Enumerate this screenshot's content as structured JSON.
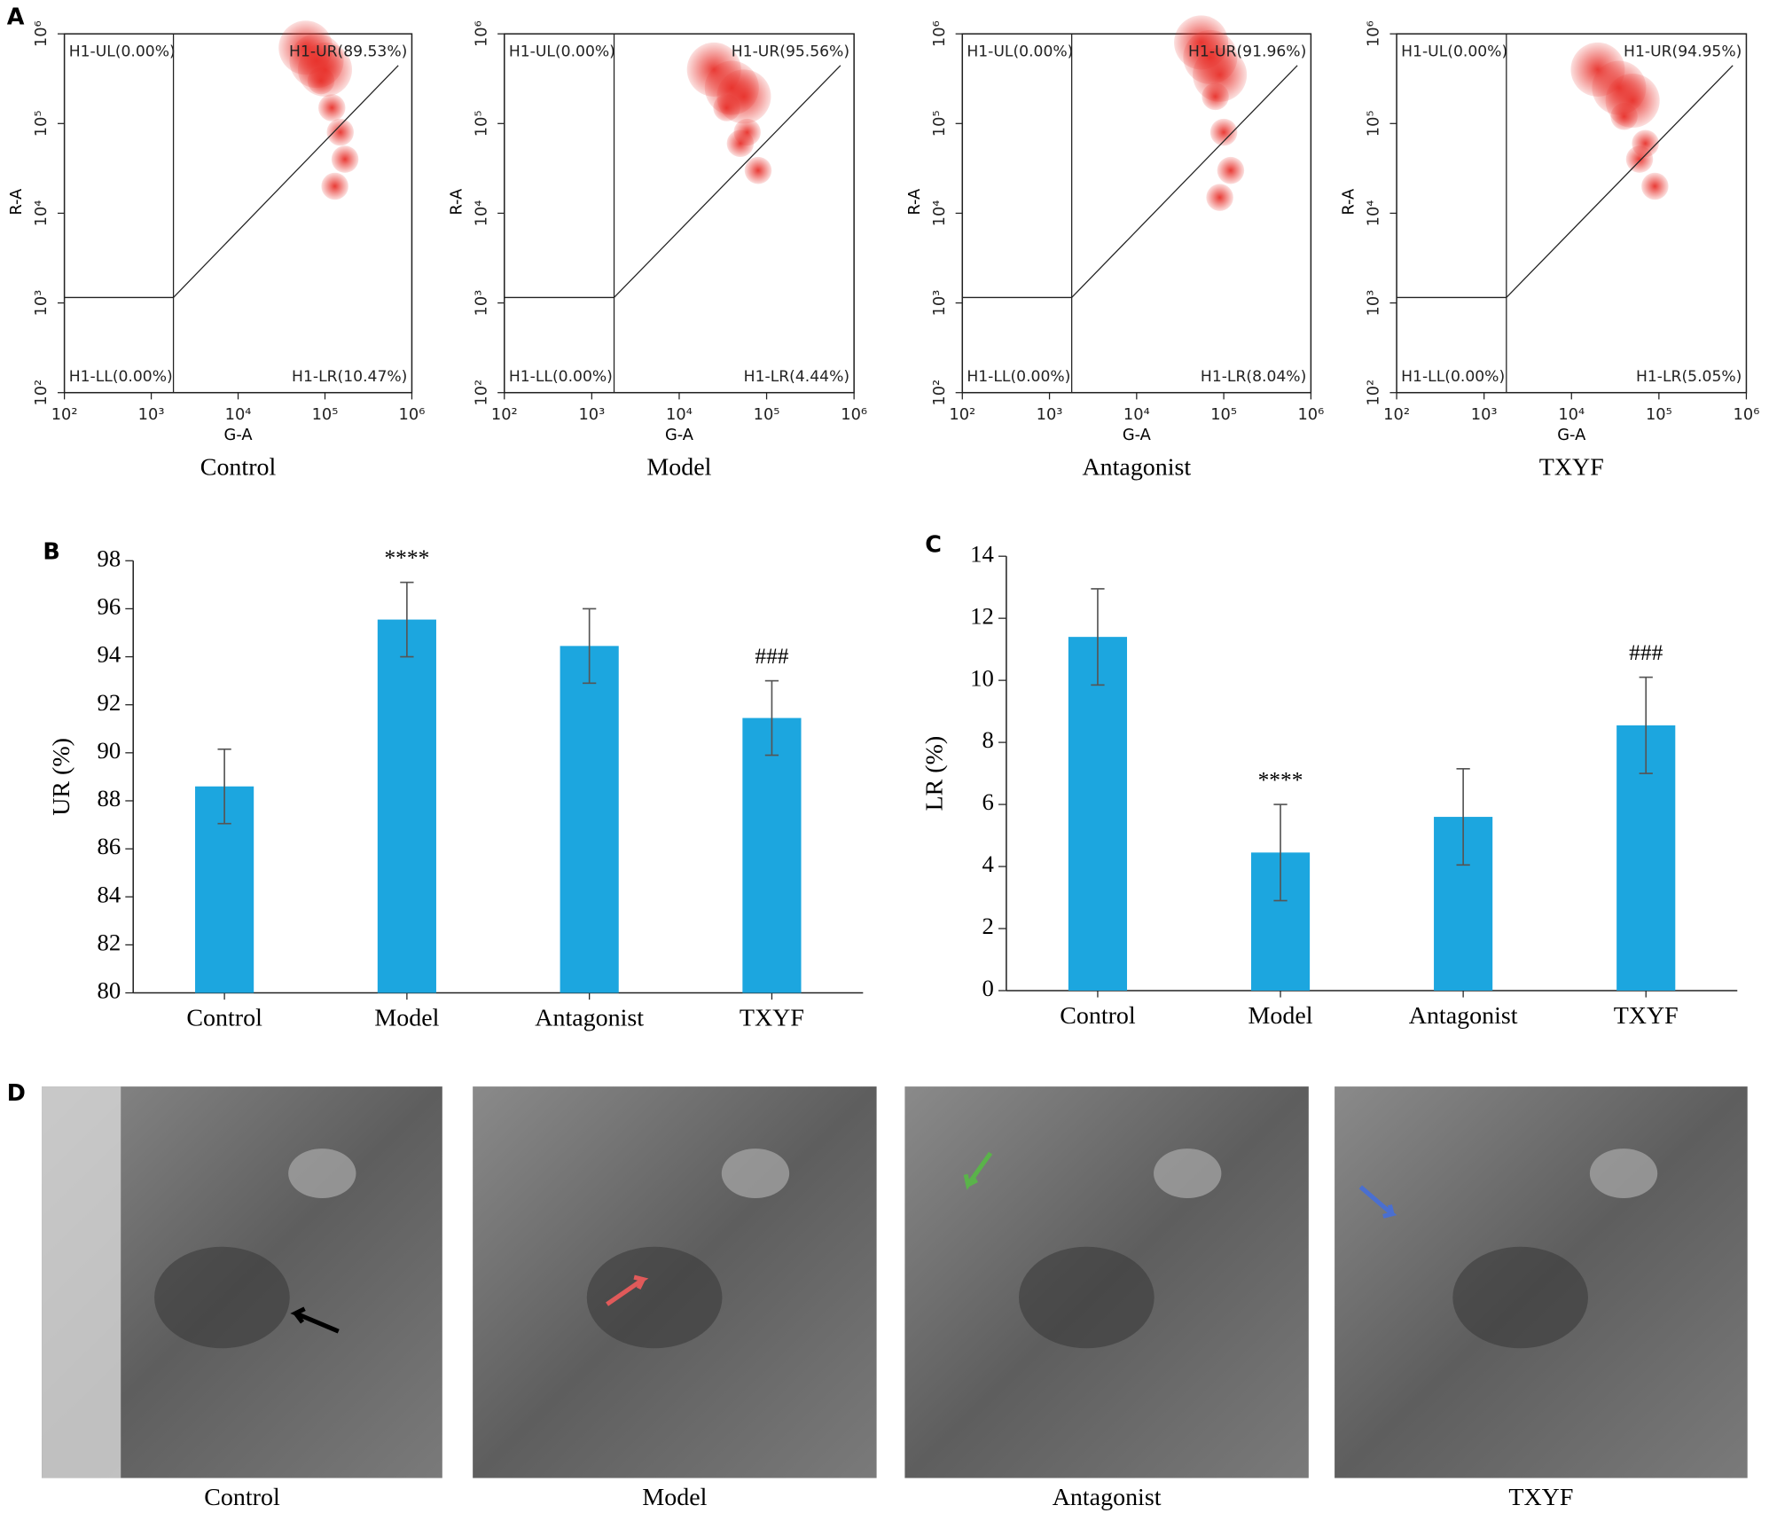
{
  "panel_labels": [
    "A",
    "B",
    "C",
    "D"
  ],
  "chart_data": [
    {
      "type": "scatter",
      "caption": "Control",
      "xlabel": "G-A",
      "ylabel": "R-A",
      "log_x": true,
      "log_y": true,
      "xlim": [
        100,
        1000000
      ],
      "ylim": [
        100,
        1000000
      ],
      "xticks": [
        {
          "value": 100,
          "label": "10²"
        },
        {
          "value": 1000,
          "label": "10³"
        },
        {
          "value": 10000,
          "label": "10⁴"
        },
        {
          "value": 100000,
          "label": "10⁵"
        },
        {
          "value": 1000000,
          "label": "10⁶"
        }
      ],
      "yticks": [
        {
          "value": 100,
          "label": "10²"
        },
        {
          "value": 1000,
          "label": "10³"
        },
        {
          "value": 10000,
          "label": "10⁴"
        },
        {
          "value": 100000,
          "label": "10⁵"
        },
        {
          "value": 1000000,
          "label": "10⁶"
        }
      ],
      "color": "#e8312b",
      "gate": {
        "x": 1800,
        "y": 1150
      },
      "quadrant_labels": {
        "UL": "H1-UL(0.00%)",
        "UR": "H1-UR(89.53%)",
        "LL": "H1-LL(0.00%)",
        "LR": "H1-LR(10.47%)"
      },
      "x": [
        60000,
        80000,
        100000,
        90000,
        120000,
        150000,
        170000,
        130000
      ],
      "y": [
        700000,
        500000,
        400000,
        300000,
        150000,
        80000,
        40000,
        20000
      ]
    },
    {
      "type": "scatter",
      "caption": "Model",
      "xlabel": "G-A",
      "ylabel": "R-A",
      "log_x": true,
      "log_y": true,
      "xlim": [
        100,
        1000000
      ],
      "ylim": [
        100,
        1000000
      ],
      "xticks": [
        {
          "value": 100,
          "label": "10²"
        },
        {
          "value": 1000,
          "label": "10³"
        },
        {
          "value": 10000,
          "label": "10⁴"
        },
        {
          "value": 100000,
          "label": "10⁵"
        },
        {
          "value": 1000000,
          "label": "10⁶"
        }
      ],
      "yticks": [
        {
          "value": 100,
          "label": "10²"
        },
        {
          "value": 1000,
          "label": "10³"
        },
        {
          "value": 10000,
          "label": "10⁴"
        },
        {
          "value": 100000,
          "label": "10⁵"
        },
        {
          "value": 1000000,
          "label": "10⁶"
        }
      ],
      "color": "#e8312b",
      "gate": {
        "x": 1800,
        "y": 1150
      },
      "quadrant_labels": {
        "UL": "H1-UL(0.00%)",
        "UR": "H1-UR(95.56%)",
        "LL": "H1-LL(0.00%)",
        "LR": "H1-LR(4.44%)"
      },
      "x": [
        25000,
        40000,
        55000,
        35000,
        60000,
        80000,
        50000
      ],
      "y": [
        400000,
        250000,
        200000,
        150000,
        80000,
        30000,
        60000
      ]
    },
    {
      "type": "scatter",
      "caption": "Antagonist",
      "xlabel": "G-A",
      "ylabel": "R-A",
      "log_x": true,
      "log_y": true,
      "xlim": [
        100,
        1000000
      ],
      "ylim": [
        100,
        1000000
      ],
      "xticks": [
        {
          "value": 100,
          "label": "10²"
        },
        {
          "value": 1000,
          "label": "10³"
        },
        {
          "value": 10000,
          "label": "10⁴"
        },
        {
          "value": 100000,
          "label": "10⁵"
        },
        {
          "value": 1000000,
          "label": "10⁶"
        }
      ],
      "yticks": [
        {
          "value": 100,
          "label": "10²"
        },
        {
          "value": 1000,
          "label": "10³"
        },
        {
          "value": 10000,
          "label": "10⁴"
        },
        {
          "value": 100000,
          "label": "10⁵"
        },
        {
          "value": 1000000,
          "label": "10⁶"
        }
      ],
      "color": "#e8312b",
      "gate": {
        "x": 1800,
        "y": 1150
      },
      "quadrant_labels": {
        "UL": "H1-UL(0.00%)",
        "UR": "H1-UR(91.96%)",
        "LL": "H1-LL(0.00%)",
        "LR": "H1-LR(8.04%)"
      },
      "x": [
        55000,
        70000,
        90000,
        80000,
        100000,
        120000,
        90000
      ],
      "y": [
        800000,
        550000,
        350000,
        200000,
        80000,
        30000,
        15000
      ]
    },
    {
      "type": "scatter",
      "caption": "TXYF",
      "xlabel": "G-A",
      "ylabel": "R-A",
      "log_x": true,
      "log_y": true,
      "xlim": [
        100,
        1000000
      ],
      "ylim": [
        100,
        1000000
      ],
      "xticks": [
        {
          "value": 100,
          "label": "10²"
        },
        {
          "value": 1000,
          "label": "10³"
        },
        {
          "value": 10000,
          "label": "10⁴"
        },
        {
          "value": 100000,
          "label": "10⁵"
        },
        {
          "value": 1000000,
          "label": "10⁶"
        }
      ],
      "yticks": [
        {
          "value": 100,
          "label": "10²"
        },
        {
          "value": 1000,
          "label": "10³"
        },
        {
          "value": 10000,
          "label": "10⁴"
        },
        {
          "value": 100000,
          "label": "10⁵"
        },
        {
          "value": 1000000,
          "label": "10⁶"
        }
      ],
      "color": "#e8312b",
      "gate": {
        "x": 1800,
        "y": 1150
      },
      "quadrant_labels": {
        "UL": "H1-UL(0.00%)",
        "UR": "H1-UR(94.95%)",
        "LL": "H1-LL(0.00%)",
        "LR": "H1-LR(5.05%)"
      },
      "x": [
        20000,
        35000,
        50000,
        40000,
        70000,
        90000,
        60000
      ],
      "y": [
        400000,
        250000,
        180000,
        120000,
        60000,
        20000,
        40000
      ]
    },
    {
      "type": "bar",
      "ylabel": "UR (%)",
      "categories": [
        "Control",
        "Model",
        "Antagonist",
        "TXYF"
      ],
      "values": [
        88.6,
        95.55,
        94.45,
        91.45
      ],
      "errors": [
        1.55,
        1.55,
        1.55,
        1.55
      ],
      "annotations": [
        null,
        "****",
        null,
        "###"
      ],
      "color": "#1ca6df",
      "ylim": [
        80,
        98
      ],
      "yticks": [
        80,
        82,
        84,
        86,
        88,
        90,
        92,
        94,
        96,
        98
      ]
    },
    {
      "type": "bar",
      "ylabel": "LR (%)",
      "categories": [
        "Control",
        "Model",
        "Antagonist",
        "TXYF"
      ],
      "values": [
        11.4,
        4.45,
        5.6,
        8.55
      ],
      "errors": [
        1.55,
        1.55,
        1.55,
        1.55
      ],
      "annotations": [
        null,
        "****",
        null,
        "###"
      ],
      "color": "#1ca6df",
      "ylim": [
        0,
        14
      ],
      "yticks": [
        0,
        2,
        4,
        6,
        8,
        10,
        12,
        14
      ]
    }
  ],
  "micrographs": {
    "captions": [
      "Control",
      "Model",
      "Antagonist",
      "TXYF"
    ]
  }
}
